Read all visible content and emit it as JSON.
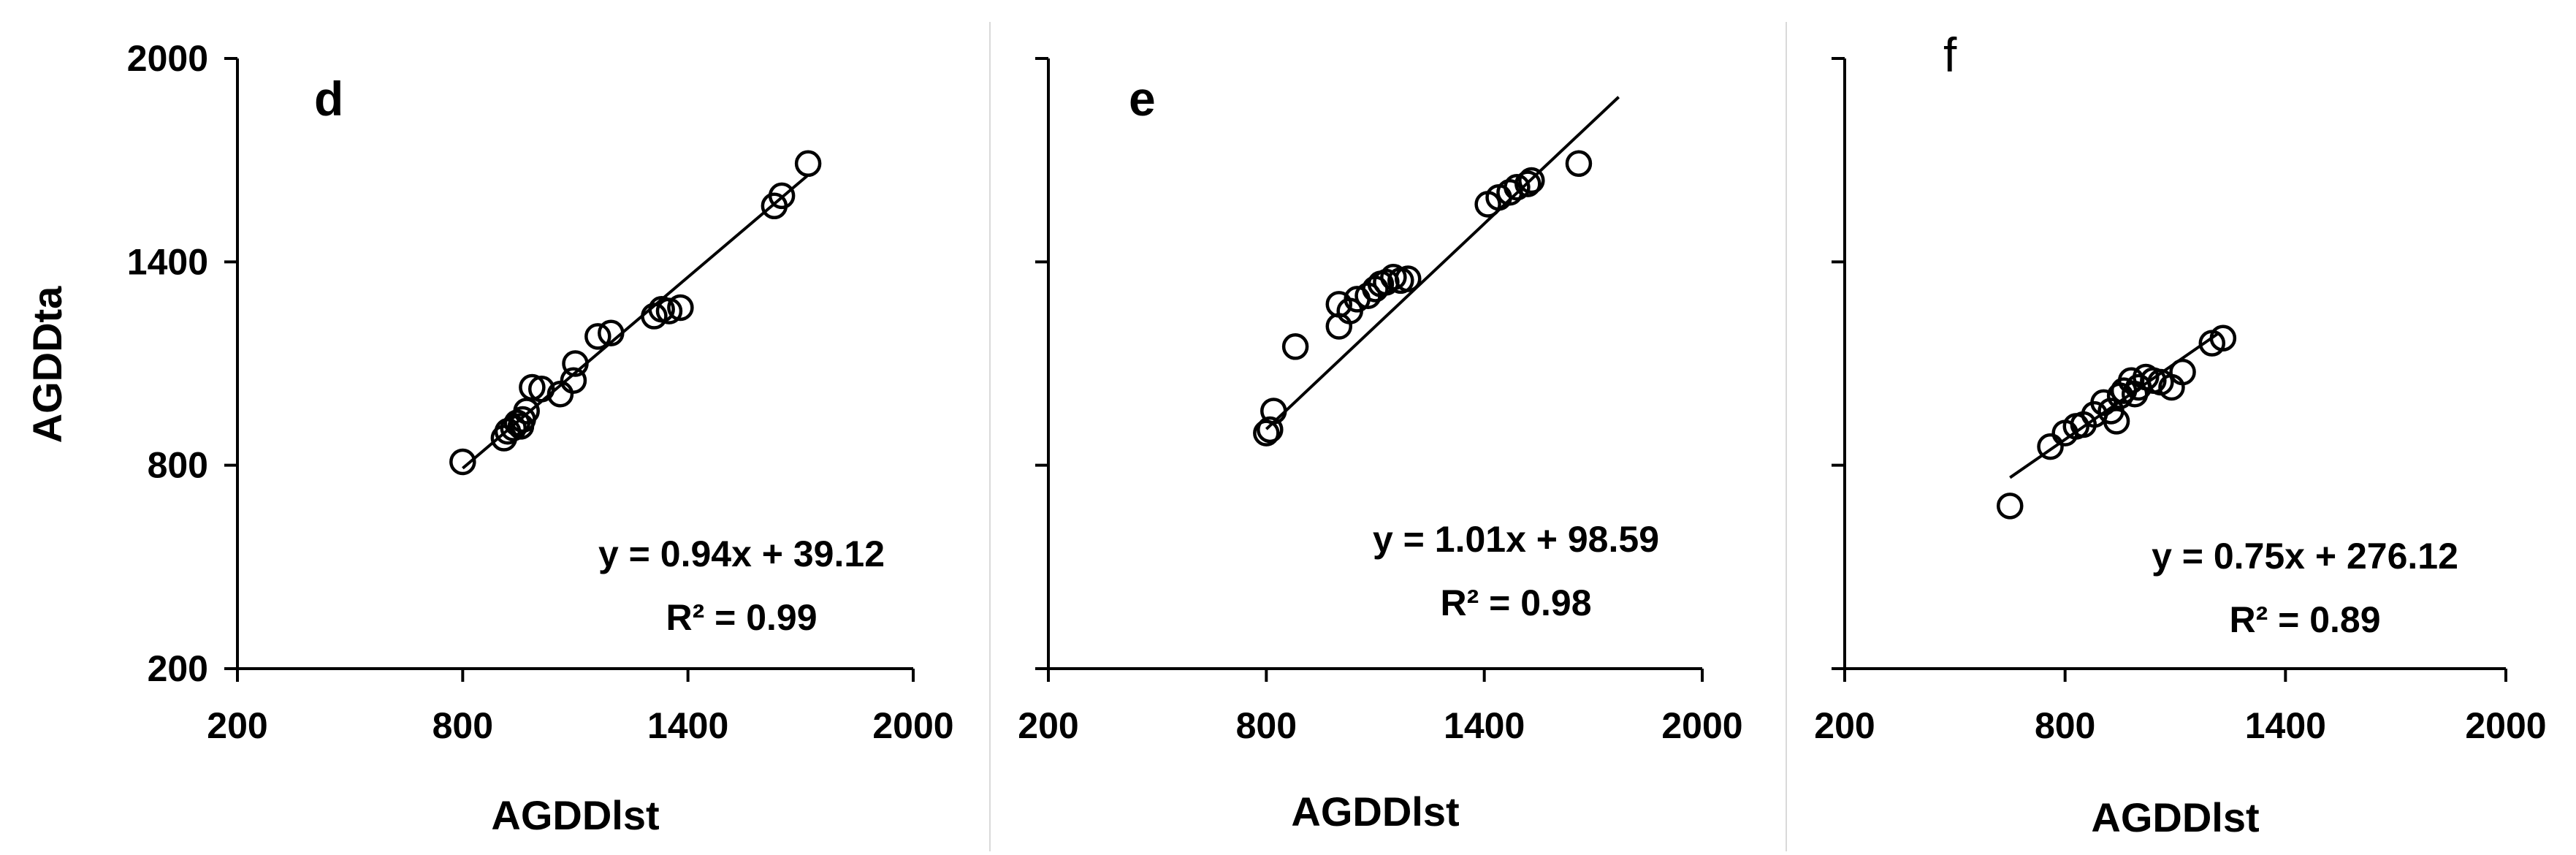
{
  "shared_labels": {
    "y_axis_title": "AGDDta"
  },
  "chart_data": [
    {
      "type": "scatter",
      "panel_label": "d",
      "xlabel": "AGDDlst",
      "ylabel": "AGDDta",
      "xlim": [
        200,
        2000
      ],
      "ylim": [
        200,
        2000
      ],
      "xticks": [
        "200",
        "800",
        "1400",
        "2000"
      ],
      "yticks": [
        "200",
        "800",
        "1400",
        "2000"
      ],
      "equation": "y = 0.94x + 39.12",
      "r_squared": "R² = 0.99",
      "fit": {
        "slope": 0.94,
        "intercept": 39.12,
        "x_range": [
          800,
          1720
        ]
      },
      "points": [
        [
          800,
          810
        ],
        [
          910,
          880
        ],
        [
          920,
          900
        ],
        [
          935,
          910
        ],
        [
          945,
          925
        ],
        [
          955,
          915
        ],
        [
          960,
          935
        ],
        [
          970,
          960
        ],
        [
          985,
          1030
        ],
        [
          1010,
          1025
        ],
        [
          1060,
          1010
        ],
        [
          1095,
          1050
        ],
        [
          1100,
          1100
        ],
        [
          1160,
          1180
        ],
        [
          1195,
          1190
        ],
        [
          1310,
          1240
        ],
        [
          1330,
          1260
        ],
        [
          1350,
          1255
        ],
        [
          1380,
          1265
        ],
        [
          1630,
          1565
        ],
        [
          1650,
          1595
        ],
        [
          1720,
          1690
        ]
      ]
    },
    {
      "type": "scatter",
      "panel_label": "e",
      "xlabel": "AGDDlst",
      "xlim": [
        200,
        2000
      ],
      "ylim": [
        200,
        2000
      ],
      "xticks": [
        "200",
        "800",
        "1400",
        "2000"
      ],
      "equation": "y = 1.01x + 98.59",
      "r_squared": "R² = 0.98",
      "fit": {
        "slope": 1.01,
        "intercept": 98.59,
        "x_range": [
          800,
          1770
        ]
      },
      "points": [
        [
          800,
          895
        ],
        [
          810,
          905
        ],
        [
          820,
          960
        ],
        [
          880,
          1150
        ],
        [
          1000,
          1210
        ],
        [
          1000,
          1275
        ],
        [
          1030,
          1255
        ],
        [
          1050,
          1290
        ],
        [
          1080,
          1300
        ],
        [
          1100,
          1320
        ],
        [
          1115,
          1335
        ],
        [
          1130,
          1340
        ],
        [
          1150,
          1355
        ],
        [
          1170,
          1345
        ],
        [
          1190,
          1350
        ],
        [
          1410,
          1570
        ],
        [
          1440,
          1590
        ],
        [
          1470,
          1605
        ],
        [
          1490,
          1620
        ],
        [
          1520,
          1630
        ],
        [
          1530,
          1640
        ],
        [
          1660,
          1690
        ]
      ]
    },
    {
      "type": "scatter",
      "panel_label": "f",
      "xlabel": "AGDDlst",
      "xlim": [
        200,
        2000
      ],
      "ylim": [
        200,
        2000
      ],
      "xticks": [
        "200",
        "800",
        "1400",
        "2000"
      ],
      "equation": "y = 0.75x + 276.12",
      "r_squared": "R² = 0.89",
      "fit": {
        "slope": 0.75,
        "intercept": 276.12,
        "x_range": [
          650,
          1220
        ]
      },
      "points": [
        [
          650,
          680
        ],
        [
          760,
          855
        ],
        [
          800,
          895
        ],
        [
          830,
          915
        ],
        [
          850,
          920
        ],
        [
          880,
          950
        ],
        [
          905,
          985
        ],
        [
          925,
          960
        ],
        [
          940,
          930
        ],
        [
          950,
          1005
        ],
        [
          960,
          1020
        ],
        [
          980,
          1050
        ],
        [
          990,
          1010
        ],
        [
          1000,
          1030
        ],
        [
          1020,
          1060
        ],
        [
          1040,
          1050
        ],
        [
          1060,
          1045
        ],
        [
          1090,
          1030
        ],
        [
          1120,
          1075
        ],
        [
          1200,
          1160
        ],
        [
          1230,
          1175
        ]
      ]
    }
  ]
}
